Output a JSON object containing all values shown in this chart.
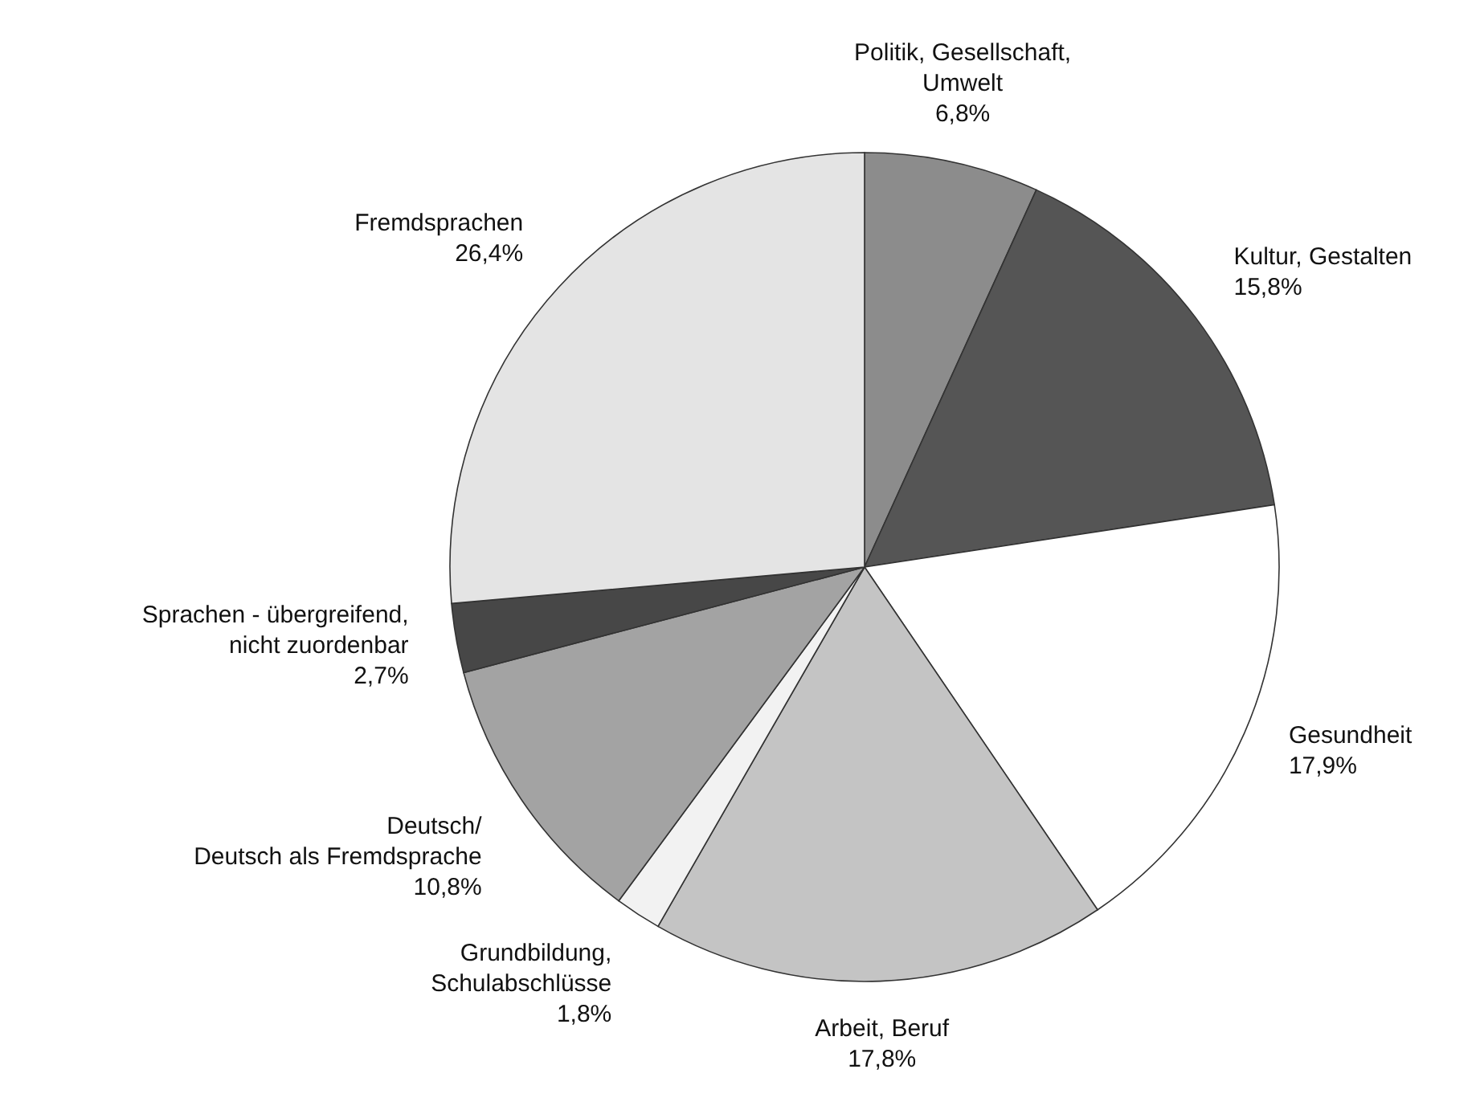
{
  "chart_data": {
    "type": "pie",
    "categories": [
      "Politik, Gesellschaft,\nUmwelt",
      "Kultur, Gestalten",
      "Gesundheit",
      "Arbeit, Beruf",
      "Grundbildung,\nSchulabschlüsse",
      "Deutsch/\nDeutsch als Fremdsprache",
      "Sprachen - übergreifend,\nnicht zuordenbar",
      "Fremdsprachen"
    ],
    "values": [
      6.8,
      15.8,
      17.9,
      17.8,
      1.8,
      10.8,
      2.7,
      26.4
    ],
    "colors": [
      "#8c8c8c",
      "#555555",
      "#ffffff",
      "#c4c4c4",
      "#f2f2f2",
      "#a3a3a3",
      "#474747",
      "#e4e4e4"
    ],
    "value_labels": [
      "6,8%",
      "15,8%",
      "17,9%",
      "17,8%",
      "1,8%",
      "10,8%",
      "2,7%",
      "26,4%"
    ]
  }
}
